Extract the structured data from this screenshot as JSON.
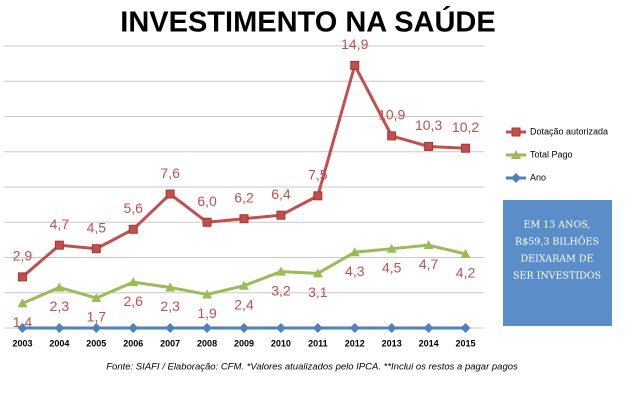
{
  "chart_data": {
    "type": "line",
    "title": "INVESTIMENTO NA SAÚDE",
    "categories": [
      "2003",
      "2004",
      "2005",
      "2006",
      "2007",
      "2008",
      "2009",
      "2010",
      "2011",
      "2012",
      "2013",
      "2014",
      "2015"
    ],
    "series": [
      {
        "name": "Dotação autorizada",
        "color": "#c0504d",
        "marker": "square",
        "values": [
          2.9,
          4.7,
          4.5,
          5.6,
          7.6,
          6.0,
          6.2,
          6.4,
          7.5,
          14.9,
          10.9,
          10.3,
          10.2
        ],
        "value_labels": [
          "2,9",
          "4,7",
          "4,5",
          "5,6",
          "7,6",
          "6,0",
          "6,2",
          "6,4",
          "7,5",
          "14,9",
          "10,9",
          "10,3",
          "10,2"
        ]
      },
      {
        "name": "Total Pago",
        "color": "#9bbb59",
        "marker": "triangle",
        "values": [
          1.4,
          2.3,
          1.7,
          2.6,
          2.3,
          1.9,
          2.4,
          3.2,
          3.1,
          4.3,
          4.5,
          4.7,
          4.2
        ],
        "value_labels": [
          "1,4",
          "2,3",
          "1,7",
          "2,6",
          "2,3",
          "1,9",
          "2,4",
          "3,2",
          "3,1",
          "4,3",
          "4,5",
          "4,7",
          "4,2"
        ]
      },
      {
        "name": "Ano",
        "color": "#4f81bd",
        "marker": "diamond",
        "values": [
          0,
          0,
          0,
          0,
          0,
          0,
          0,
          0,
          0,
          0,
          0,
          0,
          0
        ]
      }
    ],
    "ylim": [
      0,
      16
    ],
    "yticks": [
      0,
      2,
      4,
      6,
      8,
      10,
      12,
      14,
      16
    ],
    "grid": true,
    "callout": [
      "EM 13 ANOS,",
      "R$59,3 BILHÕES",
      "DEIXARAM DE",
      "SER INVESTIDOS"
    ],
    "footnote": "Fonte: SIAFI / Elaboração: CFM.  *Valores atualizados pelo IPCA. **Inclui os restos a pagar pagos"
  }
}
